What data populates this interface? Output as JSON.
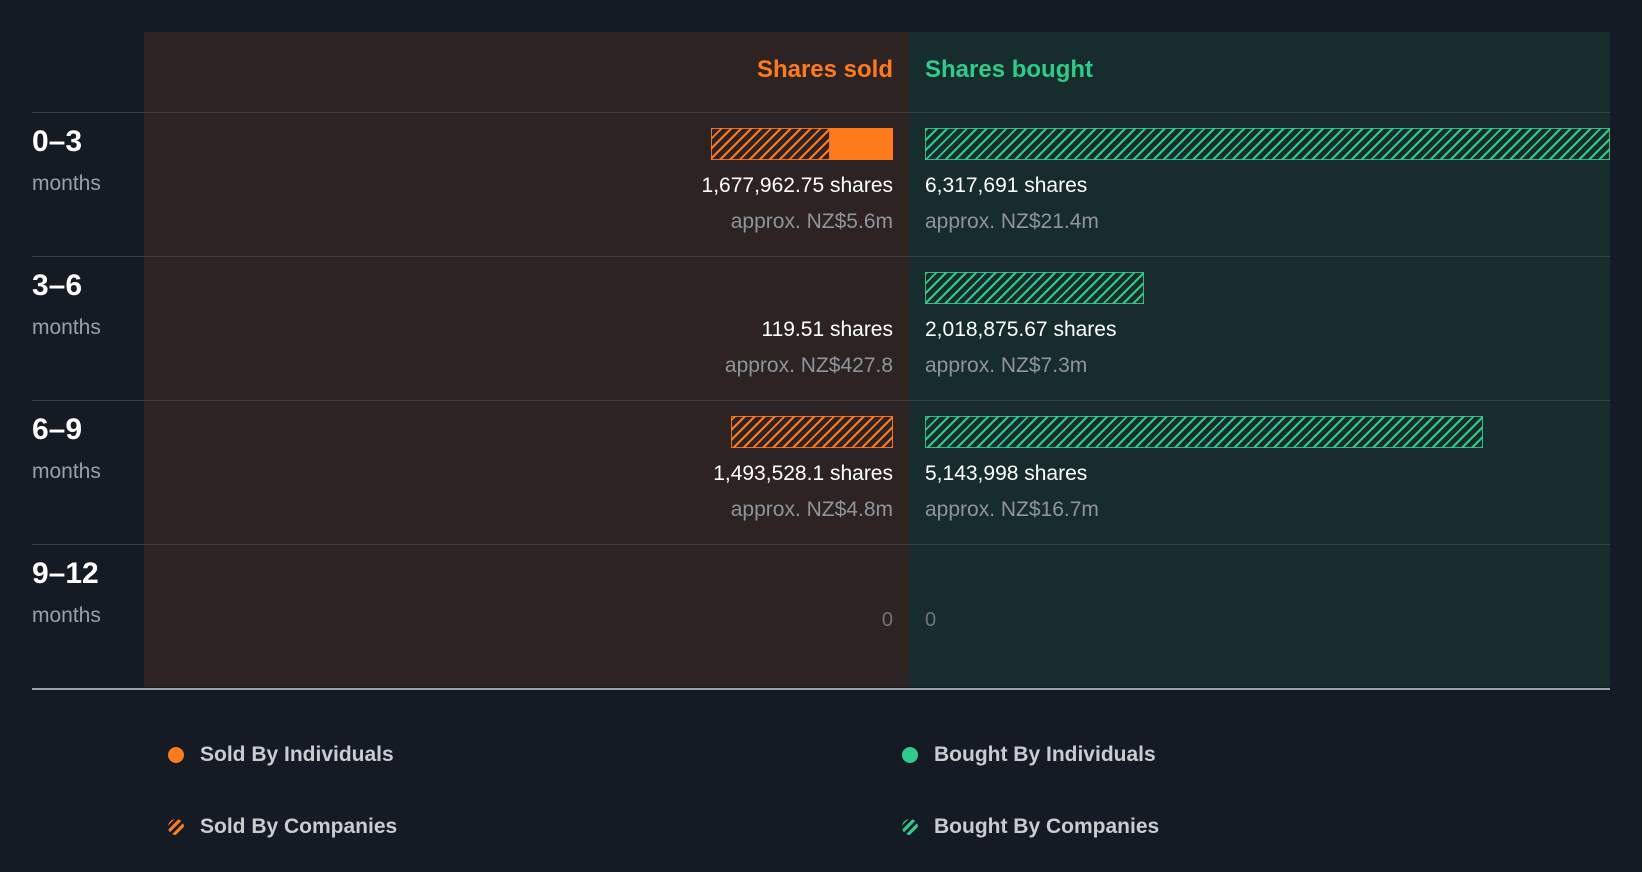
{
  "colors": {
    "sold": "#ff7a1a",
    "bought": "#2ecc8a",
    "sold_panel_bg": "#2d2322",
    "bought_panel_bg": "#172c2c",
    "page_bg": "#151b24"
  },
  "chart_data": {
    "type": "bar",
    "columns": {
      "sold_title": "Shares sold",
      "bought_title": "Shares bought"
    },
    "categories": [
      "0–3",
      "3–6",
      "6–9",
      "9–12"
    ],
    "unit_label": "months",
    "rows": [
      {
        "period": "0–3",
        "unit": "months",
        "sold": {
          "individuals": 582000,
          "companies": 1095962.75,
          "shares_label": "1,677,962.75 shares",
          "approx_label": "approx. NZ$5.6m"
        },
        "bought": {
          "individuals": 0,
          "companies": 6317691,
          "shares_label": "6,317,691 shares",
          "approx_label": "approx. NZ$21.4m"
        }
      },
      {
        "period": "3–6",
        "unit": "months",
        "sold": {
          "individuals": 119.51,
          "companies": 0,
          "shares_label": "119.51 shares",
          "approx_label": "approx. NZ$427.8"
        },
        "bought": {
          "individuals": 0,
          "companies": 2018875.67,
          "shares_label": "2,018,875.67 shares",
          "approx_label": "approx. NZ$7.3m"
        }
      },
      {
        "period": "6–9",
        "unit": "months",
        "sold": {
          "individuals": 0,
          "companies": 1493528.1,
          "shares_label": "1,493,528.1 shares",
          "approx_label": "approx. NZ$4.8m"
        },
        "bought": {
          "individuals": 0,
          "companies": 5143998,
          "shares_label": "5,143,998 shares",
          "approx_label": "approx. NZ$16.7m"
        }
      },
      {
        "period": "9–12",
        "unit": "months",
        "sold": {
          "individuals": 0,
          "companies": 0,
          "shares_label": "0",
          "approx_label": ""
        },
        "bought": {
          "individuals": 0,
          "companies": 0,
          "shares_label": "0",
          "approx_label": ""
        }
      }
    ],
    "scale_max": 6317691,
    "legend": [
      {
        "label": "Sold By Individuals",
        "color": "#ff7a1a",
        "style": "solid"
      },
      {
        "label": "Bought By Individuals",
        "color": "#2ecc8a",
        "style": "solid"
      },
      {
        "label": "Sold By Companies",
        "color": "#ff7a1a",
        "style": "hatched"
      },
      {
        "label": "Bought By Companies",
        "color": "#2ecc8a",
        "style": "hatched"
      }
    ]
  }
}
